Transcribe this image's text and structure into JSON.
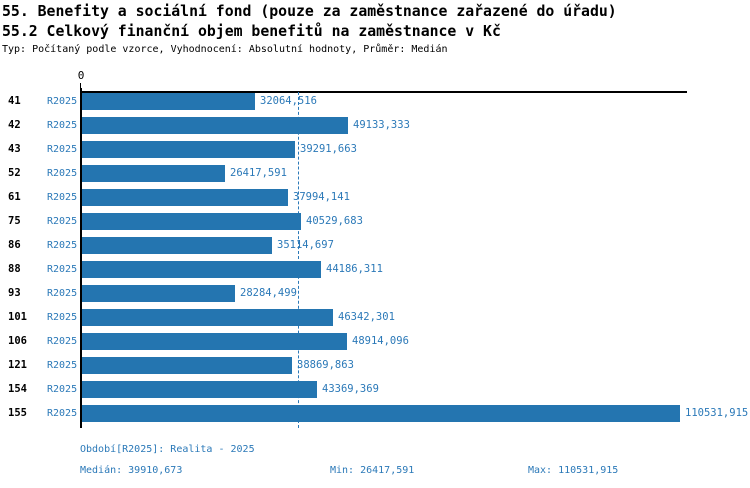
{
  "header": {
    "title_line1": "55. Benefity a sociální fond (pouze za zaměstnance zařazené do úřadu)",
    "title_line2": "55.2 Celkový finanční objem benefitů na zaměstnance v Kč",
    "subtitle": "Typ: Počítaný podle vzorce, Vyhodnocení: Absolutní hodnoty, Průměr: Medián"
  },
  "chart_data": {
    "type": "bar",
    "orientation": "horizontal",
    "x_zero_label": "0",
    "series_label": "R2025",
    "categories": [
      "41",
      "42",
      "43",
      "52",
      "61",
      "75",
      "86",
      "88",
      "93",
      "101",
      "106",
      "121",
      "154",
      "155"
    ],
    "values": [
      32064.516,
      49133.333,
      39291.663,
      26417.591,
      37994.141,
      40529.683,
      35114.697,
      44186.311,
      28284.499,
      46342.301,
      48914.096,
      38869.863,
      43369.369,
      110531.915
    ],
    "value_labels": [
      "32064,516",
      "49133,333",
      "39291,663",
      "26417,591",
      "37994,141",
      "40529,683",
      "35114,697",
      "44186,311",
      "28284,499",
      "46342,301",
      "48914,096",
      "38869,863",
      "43369,369",
      "110531,915"
    ],
    "xlim": [
      0,
      110531.915
    ],
    "median": 39910.673,
    "min": 26417.591,
    "max": 110531.915,
    "grid": false,
    "legend_position": "none",
    "colors": {
      "bar": "#2475b0",
      "accent_text": "#2b79b8",
      "axis": "#000000"
    }
  },
  "footer": {
    "period": "Období[R2025]: Realita - 2025",
    "median": "Medián: 39910,673",
    "min": "Min: 26417,591",
    "max": "Max: 110531,915"
  }
}
